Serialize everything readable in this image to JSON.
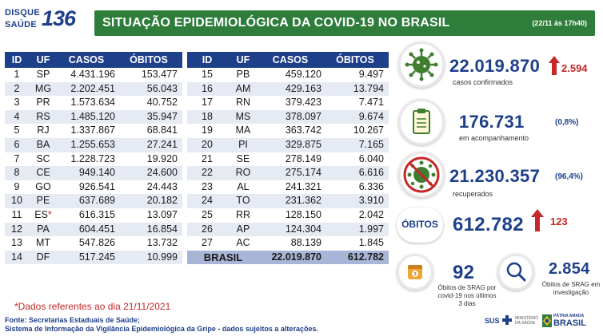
{
  "header": {
    "logo_line1": "DISQUE",
    "logo_line2": "SAÚDE",
    "logo_number": "136",
    "title": "SITUAÇÃO EPIDEMIOLÓGICA DA COVID-19 NO BRASIL",
    "timestamp": "(22/11 às 17h40)"
  },
  "table_headers": {
    "id": "ID",
    "uf": "UF",
    "casos": "CASOS",
    "obitos": "ÓBITOS"
  },
  "table_left": [
    {
      "id": "1",
      "uf": "SP",
      "casos": "4.431.196",
      "obitos": "153.477"
    },
    {
      "id": "2",
      "uf": "MG",
      "casos": "2.202.451",
      "obitos": "56.043"
    },
    {
      "id": "3",
      "uf": "PR",
      "casos": "1.573.634",
      "obitos": "40.752"
    },
    {
      "id": "4",
      "uf": "RS",
      "casos": "1.485.120",
      "obitos": "35.947"
    },
    {
      "id": "5",
      "uf": "RJ",
      "casos": "1.337.867",
      "obitos": "68.841"
    },
    {
      "id": "6",
      "uf": "BA",
      "casos": "1.255.653",
      "obitos": "27.241"
    },
    {
      "id": "7",
      "uf": "SC",
      "casos": "1.228.723",
      "obitos": "19.920"
    },
    {
      "id": "8",
      "uf": "CE",
      "casos": "949.140",
      "obitos": "24.600"
    },
    {
      "id": "9",
      "uf": "GO",
      "casos": "926.541",
      "obitos": "24.443"
    },
    {
      "id": "10",
      "uf": "PE",
      "casos": "637.689",
      "obitos": "20.182"
    },
    {
      "id": "11",
      "uf": "ES",
      "casos": "616.315",
      "obitos": "13.097"
    },
    {
      "id": "12",
      "uf": "PA",
      "casos": "604.451",
      "obitos": "16.854"
    },
    {
      "id": "13",
      "uf": "MT",
      "casos": "547.826",
      "obitos": "13.732"
    },
    {
      "id": "14",
      "uf": "DF",
      "casos": "517.245",
      "obitos": "10.999"
    }
  ],
  "es_marker": "*",
  "table_right": [
    {
      "id": "15",
      "uf": "PB",
      "casos": "459.120",
      "obitos": "9.497"
    },
    {
      "id": "16",
      "uf": "AM",
      "casos": "429.163",
      "obitos": "13.794"
    },
    {
      "id": "17",
      "uf": "RN",
      "casos": "379.423",
      "obitos": "7.471"
    },
    {
      "id": "18",
      "uf": "MS",
      "casos": "378.097",
      "obitos": "9.674"
    },
    {
      "id": "19",
      "uf": "MA",
      "casos": "363.742",
      "obitos": "10.267"
    },
    {
      "id": "20",
      "uf": "PI",
      "casos": "329.875",
      "obitos": "7.165"
    },
    {
      "id": "21",
      "uf": "SE",
      "casos": "278.149",
      "obitos": "6.040"
    },
    {
      "id": "22",
      "uf": "RO",
      "casos": "275.174",
      "obitos": "6.616"
    },
    {
      "id": "23",
      "uf": "AL",
      "casos": "241.321",
      "obitos": "6.336"
    },
    {
      "id": "24",
      "uf": "TO",
      "casos": "231.362",
      "obitos": "3.910"
    },
    {
      "id": "25",
      "uf": "RR",
      "casos": "128.150",
      "obitos": "2.042"
    },
    {
      "id": "26",
      "uf": "AP",
      "casos": "124.304",
      "obitos": "1.997"
    },
    {
      "id": "27",
      "uf": "AC",
      "casos": "88.139",
      "obitos": "1.845"
    }
  ],
  "total": {
    "label": "BRASIL",
    "casos": "22.019.870",
    "obitos": "612.782"
  },
  "summary": {
    "confirmados": {
      "value": "22.019.870",
      "change": "2.594",
      "label": "casos confirmados"
    },
    "acompanhamento": {
      "value": "176.731",
      "pct": "(0,8%)",
      "label": "em acompanhamento"
    },
    "recuperados": {
      "value": "21.230.357",
      "pct": "(96,4%)",
      "label": "recuperados"
    },
    "obitos": {
      "badge": "ÓBITOS",
      "value": "612.782",
      "change": "123"
    },
    "srag_obitos": {
      "value": "92",
      "label_l1": "Óbitos de SRAG por",
      "label_l2": "covid-19 nos últimos",
      "label_l3": "3 dias"
    },
    "srag_invest": {
      "value": "2.854",
      "label_l1": "Óbitos de SRAG em",
      "label_l2": "investigação"
    }
  },
  "footer": {
    "note": "*Dados referentes ao dia 21/11/2021",
    "source1": "Fonte: Secretarias Estaduais de Saúde;",
    "source2": "Sistema de Informação da Vigilância Epidemiológica da Gripe - dados sujeitos a alterações.",
    "sus": "SUS",
    "ministerio": "MINISTÉRIO DA SAÚDE",
    "patria": "PÁTRIA AMADA",
    "brasil": "BRASIL"
  },
  "colors": {
    "brand_blue": "#1e3f8a",
    "title_green": "#2e7d3a",
    "alert_red": "#c62828",
    "virus_green": "#3f7d2f"
  }
}
